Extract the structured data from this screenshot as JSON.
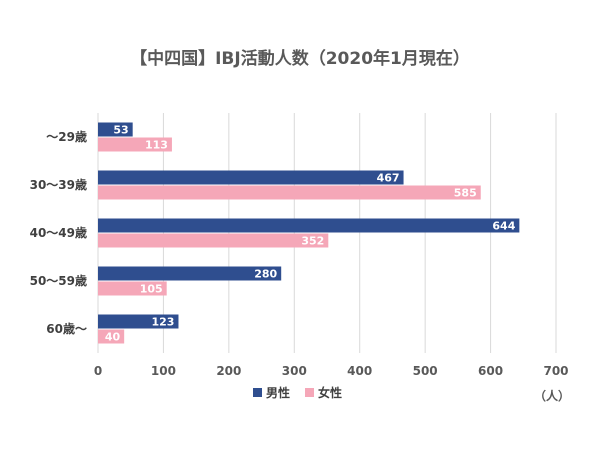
{
  "chart_data": {
    "type": "bar",
    "orientation": "horizontal",
    "title": "【中四国】IBJ活動人数（2020年1月現在）",
    "categories": [
      "～29歳",
      "30～39歳",
      "40～49歳",
      "50～59歳",
      "60歳～"
    ],
    "series": [
      {
        "name": "男性",
        "values": [
          53,
          467,
          644,
          280,
          123
        ],
        "color": "#2f4e8f"
      },
      {
        "name": "女性",
        "values": [
          113,
          585,
          352,
          105,
          40
        ],
        "color": "#f5a7b8"
      }
    ],
    "xlim": [
      0,
      700
    ],
    "xticks": [
      0,
      100,
      200,
      300,
      400,
      500,
      600,
      700
    ],
    "unit_label": "（人）",
    "grid": true,
    "legend_position": "bottom"
  }
}
